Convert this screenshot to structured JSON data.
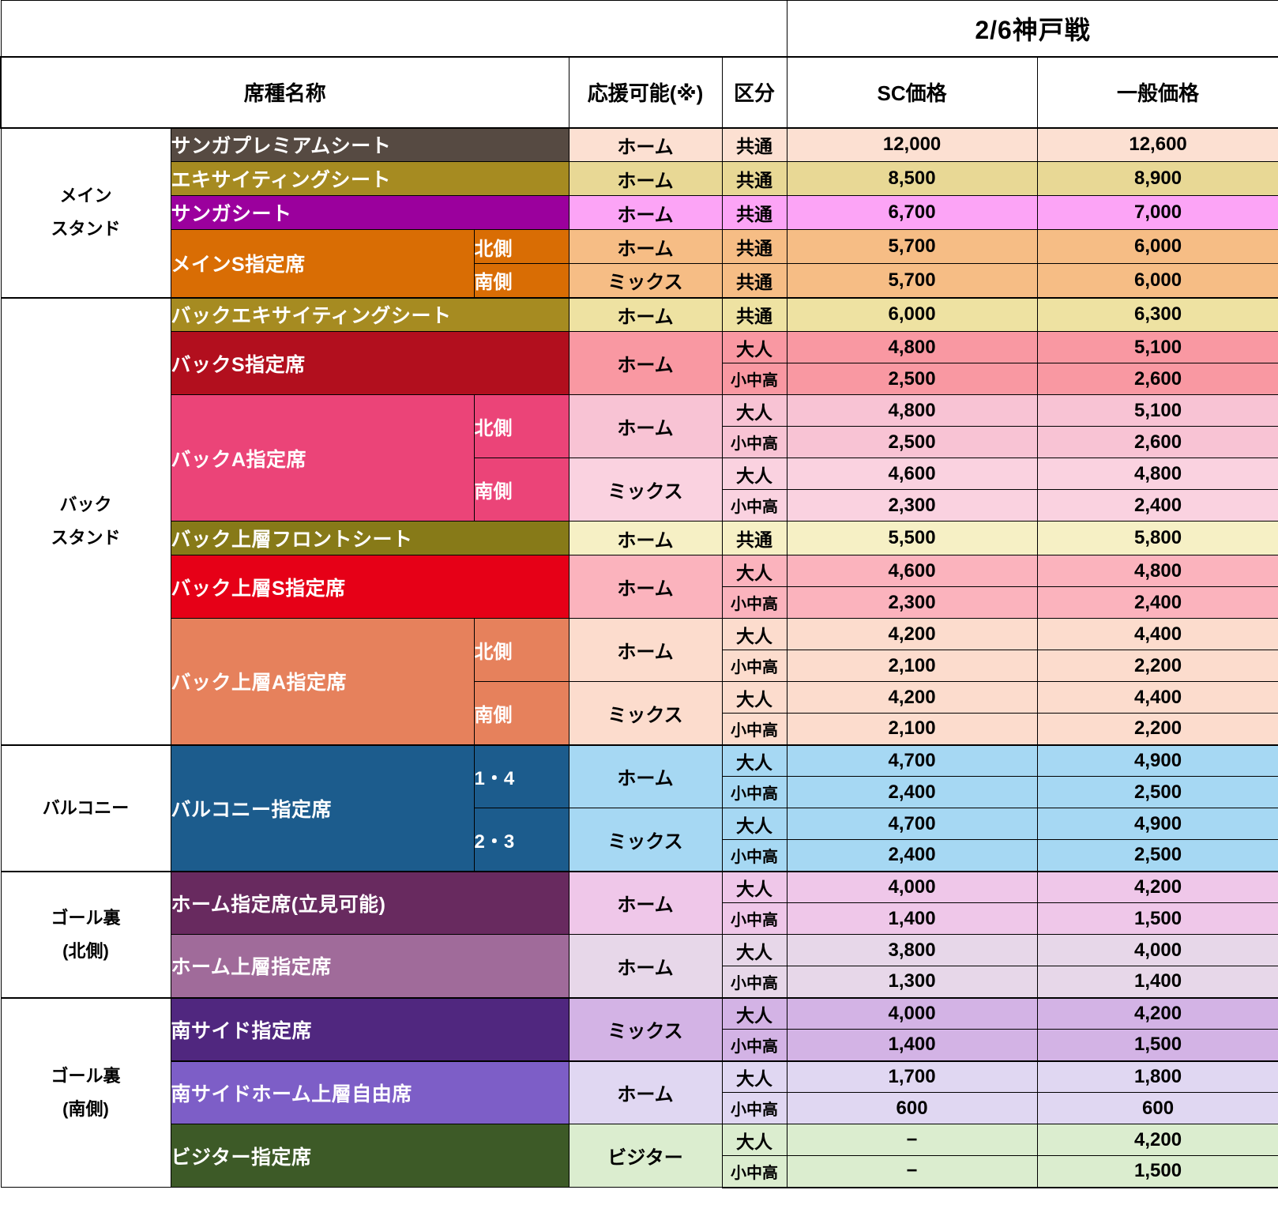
{
  "title": {
    "match": "2/6神戸戦"
  },
  "columns": {
    "seat": "席種名称",
    "cheer": "応援可能(※)",
    "class": "区分",
    "sc": "SC価格",
    "general": "一般価格"
  },
  "groups": [
    {
      "stand": "メイン\nスタンド",
      "seats": [
        {
          "name": "サンガプレミアムシート",
          "color": "#564a42",
          "tint": "#fce0d2",
          "subs": [
            {
              "label": null,
              "cheer": "ホーム",
              "rows": [
                {
                  "class": "共通",
                  "sc": "12,000",
                  "general": "12,600"
                }
              ]
            }
          ]
        },
        {
          "name": "エキサイティングシート",
          "color": "#a68b21",
          "tint": "#e8d895",
          "subs": [
            {
              "label": null,
              "cheer": "ホーム",
              "rows": [
                {
                  "class": "共通",
                  "sc": "8,500",
                  "general": "8,900"
                }
              ]
            }
          ]
        },
        {
          "name": "サンガシート",
          "color": "#9b009d",
          "tint": "#fca4f6",
          "subs": [
            {
              "label": null,
              "cheer": "ホーム",
              "rows": [
                {
                  "class": "共通",
                  "sc": "6,700",
                  "general": "7,000"
                }
              ]
            }
          ]
        },
        {
          "name": "メインS指定席",
          "color": "#d96d04",
          "tint": "#f6bd85",
          "subs": [
            {
              "label": "北側",
              "cheer": "ホーム",
              "rows": [
                {
                  "class": "共通",
                  "sc": "5,700",
                  "general": "6,000"
                }
              ]
            },
            {
              "label": "南側",
              "cheer": "ミックス",
              "rows": [
                {
                  "class": "共通",
                  "sc": "5,700",
                  "general": "6,000"
                }
              ]
            }
          ]
        }
      ]
    },
    {
      "stand": "バック\nスタンド",
      "seats": [
        {
          "name": "バックエキサイティングシート",
          "color": "#a68b21",
          "tint": "#eee2a2",
          "subs": [
            {
              "label": null,
              "cheer": "ホーム",
              "rows": [
                {
                  "class": "共通",
                  "sc": "6,000",
                  "general": "6,300"
                }
              ]
            }
          ]
        },
        {
          "name": "バックS指定席",
          "color": "#b20f1e",
          "tint": "#f998a2",
          "subs": [
            {
              "label": null,
              "cheer": "ホーム",
              "rows": [
                {
                  "class": "大人",
                  "sc": "4,800",
                  "general": "5,100"
                },
                {
                  "class": "小中高",
                  "sc": "2,500",
                  "general": "2,600"
                }
              ]
            }
          ]
        },
        {
          "name": "バックA指定席",
          "color": "#eb4478",
          "tint": "#f8c3d4",
          "subs": [
            {
              "label": "北側",
              "cheer": "ホーム",
              "rows": [
                {
                  "class": "大人",
                  "sc": "4,800",
                  "general": "5,100"
                },
                {
                  "class": "小中高",
                  "sc": "2,500",
                  "general": "2,600"
                }
              ]
            },
            {
              "label": "南側",
              "cheer": "ミックス",
              "tint": "#fad2e0",
              "rows": [
                {
                  "class": "大人",
                  "sc": "4,600",
                  "general": "4,800"
                },
                {
                  "class": "小中高",
                  "sc": "2,300",
                  "general": "2,400"
                }
              ]
            }
          ]
        },
        {
          "name": "バック上層フロントシート",
          "color": "#877a18",
          "tint": "#f6f0c5",
          "subs": [
            {
              "label": null,
              "cheer": "ホーム",
              "rows": [
                {
                  "class": "共通",
                  "sc": "5,500",
                  "general": "5,800"
                }
              ]
            }
          ]
        },
        {
          "name": "バック上層S指定席",
          "color": "#e60017",
          "tint": "#fbb3bd",
          "subs": [
            {
              "label": null,
              "cheer": "ホーム",
              "rows": [
                {
                  "class": "大人",
                  "sc": "4,600",
                  "general": "4,800"
                },
                {
                  "class": "小中高",
                  "sc": "2,300",
                  "general": "2,400"
                }
              ]
            }
          ]
        },
        {
          "name": "バック上層A指定席",
          "color": "#e6815c",
          "tint": "#fcdccd",
          "subs": [
            {
              "label": "北側",
              "cheer": "ホーム",
              "rows": [
                {
                  "class": "大人",
                  "sc": "4,200",
                  "general": "4,400"
                },
                {
                  "class": "小中高",
                  "sc": "2,100",
                  "general": "2,200"
                }
              ]
            },
            {
              "label": "南側",
              "cheer": "ミックス",
              "rows": [
                {
                  "class": "大人",
                  "sc": "4,200",
                  "general": "4,400"
                },
                {
                  "class": "小中高",
                  "sc": "2,100",
                  "general": "2,200"
                }
              ]
            }
          ]
        }
      ]
    },
    {
      "stand": "バルコニー",
      "seats": [
        {
          "name": "バルコニー指定席",
          "color": "#1c5c8d",
          "tint": "#a6d8f3",
          "subs": [
            {
              "label": "1・4",
              "cheer": "ホーム",
              "rows": [
                {
                  "class": "大人",
                  "sc": "4,700",
                  "general": "4,900"
                },
                {
                  "class": "小中高",
                  "sc": "2,400",
                  "general": "2,500"
                }
              ]
            },
            {
              "label": "2・3",
              "cheer": "ミックス",
              "rows": [
                {
                  "class": "大人",
                  "sc": "4,700",
                  "general": "4,900"
                },
                {
                  "class": "小中高",
                  "sc": "2,400",
                  "general": "2,500"
                }
              ]
            }
          ]
        }
      ]
    },
    {
      "stand": "ゴール裏\n(北側)",
      "seats": [
        {
          "name": "ホーム指定席(立見可能)",
          "color": "#682a5f",
          "tint": "#efc7e9",
          "subs": [
            {
              "label": null,
              "cheer": "ホーム",
              "rows": [
                {
                  "class": "大人",
                  "sc": "4,000",
                  "general": "4,200"
                },
                {
                  "class": "小中高",
                  "sc": "1,400",
                  "general": "1,500"
                }
              ]
            }
          ]
        },
        {
          "name": "ホーム上層指定席",
          "color": "#a06b9a",
          "tint": "#e7d7e9",
          "subs": [
            {
              "label": null,
              "cheer": "ホーム",
              "rows": [
                {
                  "class": "大人",
                  "sc": "3,800",
                  "general": "4,000"
                },
                {
                  "class": "小中高",
                  "sc": "1,300",
                  "general": "1,400"
                }
              ]
            }
          ]
        }
      ]
    },
    {
      "stand": "ゴール裏\n(南側)",
      "seats": [
        {
          "name": "南サイド指定席",
          "color": "#50277f",
          "tint": "#d3b3e5",
          "subs": [
            {
              "label": null,
              "cheer": "ミックス",
              "rows": [
                {
                  "class": "大人",
                  "sc": "4,000",
                  "general": "4,200"
                },
                {
                  "class": "小中高",
                  "sc": "1,400",
                  "general": "1,500"
                }
              ]
            }
          ]
        },
        {
          "name": "南サイドホーム上層自由席",
          "color": "#7d5ec7",
          "tint": "#e0d7f2",
          "thick_top": true,
          "subs": [
            {
              "label": null,
              "cheer": "ホーム",
              "rows": [
                {
                  "class": "大人",
                  "sc": "1,700",
                  "general": "1,800"
                },
                {
                  "class": "小中高",
                  "sc": "600",
                  "general": "600"
                }
              ]
            }
          ]
        },
        {
          "name": "ビジター指定席",
          "color": "#3d5a27",
          "tint": "#dbedcf",
          "subs": [
            {
              "label": null,
              "cheer": "ビジター",
              "rows": [
                {
                  "class": "大人",
                  "sc": "−",
                  "general": "4,200"
                },
                {
                  "class": "小中高",
                  "sc": "−",
                  "general": "1,500"
                }
              ]
            }
          ]
        }
      ]
    }
  ]
}
